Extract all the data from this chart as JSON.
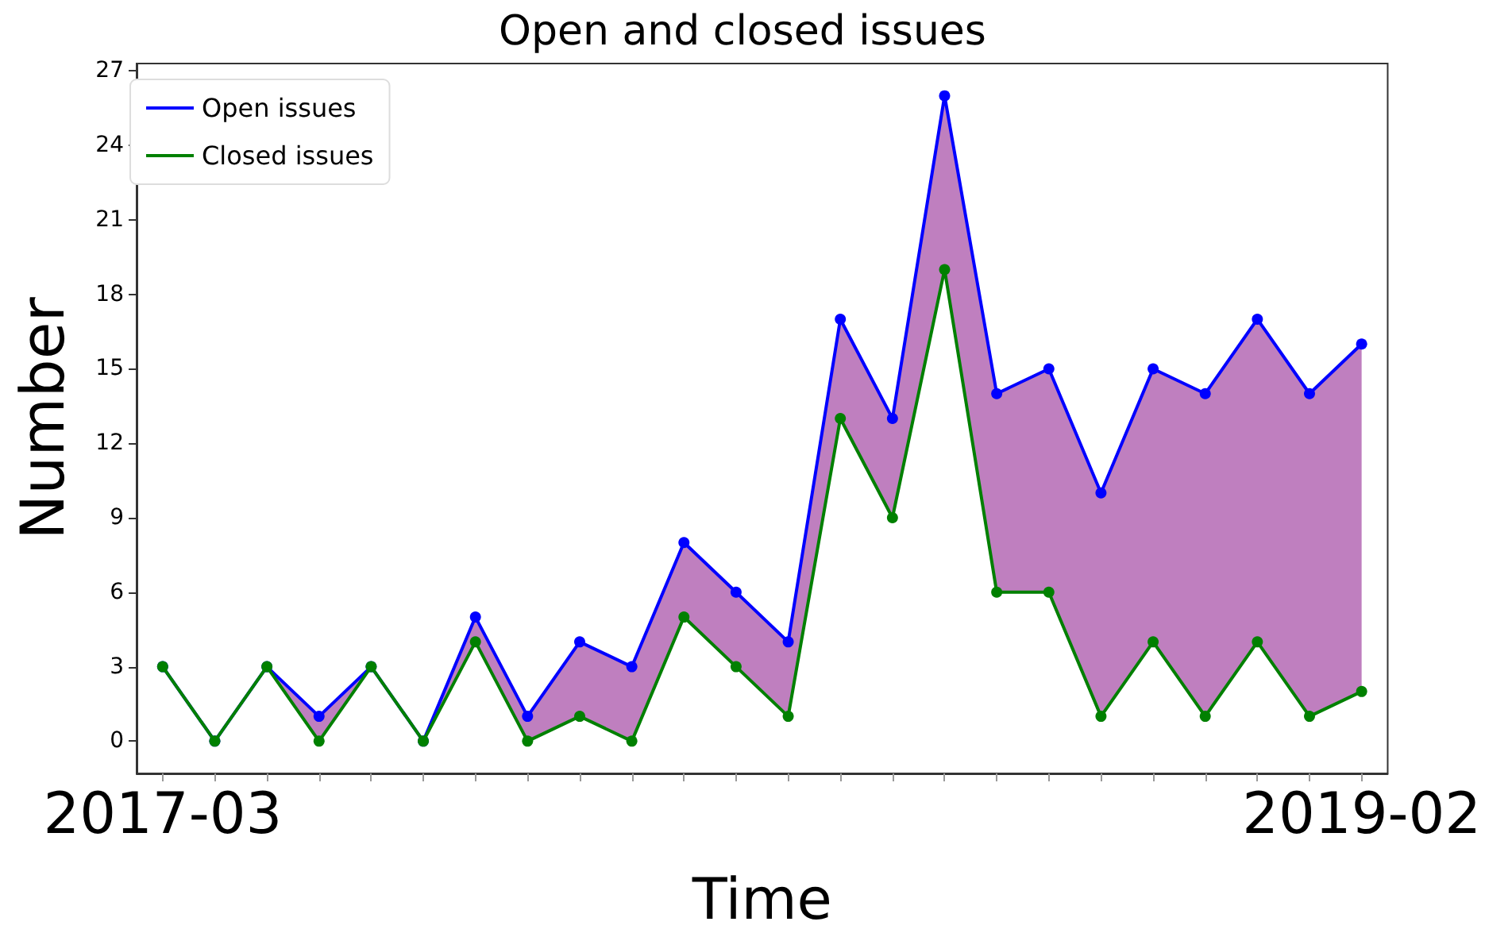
{
  "chart_data": {
    "type": "line",
    "title": "Open and closed issues",
    "xlabel": "Time",
    "ylabel": "Number",
    "categories": [
      "2017-03",
      null,
      null,
      null,
      null,
      null,
      null,
      null,
      null,
      null,
      null,
      null,
      null,
      null,
      null,
      null,
      null,
      null,
      null,
      null,
      null,
      null,
      null,
      "2019-02"
    ],
    "series": [
      {
        "name": "Open issues",
        "color": "#0000ff",
        "values": [
          3,
          0,
          3,
          1,
          3,
          0,
          5,
          1,
          4,
          3,
          8,
          6,
          4,
          17,
          13,
          26,
          14,
          15,
          10,
          15,
          14,
          17,
          14,
          16
        ],
        "lower": [
          3,
          0,
          3,
          0,
          3,
          0,
          4,
          0,
          1,
          0,
          5,
          3,
          1,
          13,
          9,
          19,
          6,
          6,
          1,
          4,
          1,
          4,
          1,
          2
        ],
        "upper": [
          3,
          0,
          3,
          1,
          3,
          0,
          5,
          1,
          4,
          3,
          8,
          6,
          4,
          17,
          13,
          26,
          14,
          15,
          10,
          15,
          14,
          17,
          14,
          16
        ]
      },
      {
        "name": "Closed issues",
        "color": "#008000",
        "values": [
          3,
          0,
          3,
          0,
          3,
          0,
          4,
          0,
          1,
          0,
          5,
          3,
          1,
          13,
          9,
          19,
          6,
          6,
          1,
          4,
          1,
          4,
          1,
          2
        ]
      }
    ],
    "ylim": [
      -1.3,
      27.3
    ],
    "yticks": [
      0,
      3,
      6,
      9,
      12,
      15,
      18,
      21,
      24,
      27
    ],
    "marker": "circle",
    "line_style": "solid",
    "legend": "top left",
    "grid": false
  }
}
